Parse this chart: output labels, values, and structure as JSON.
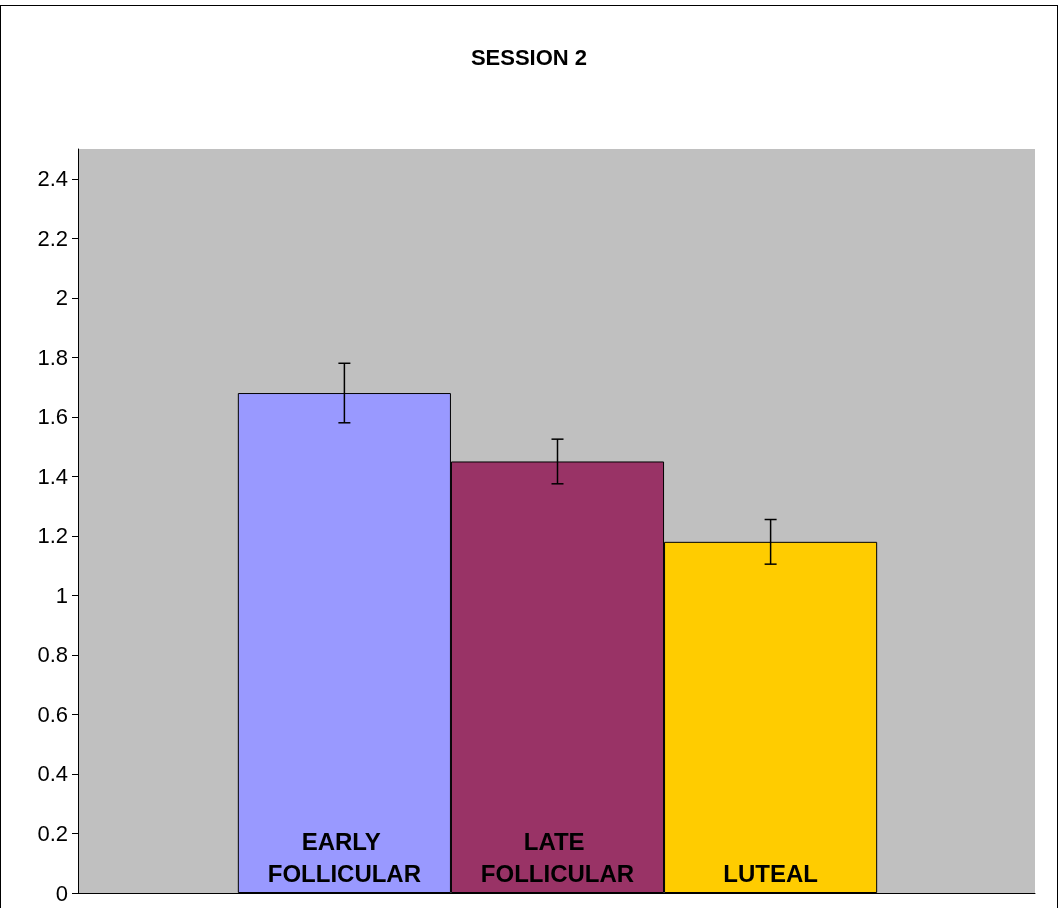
{
  "chart_data": {
    "type": "bar",
    "title": "SESSION 2",
    "categories": [
      "EARLY FOLLICULAR",
      "LATE FOLLICULAR",
      "LUTEAL"
    ],
    "values": [
      1.68,
      1.45,
      1.18
    ],
    "colors": [
      "#9999ff",
      "#993366",
      "#ffcc00"
    ],
    "errors": [
      0.1,
      0.075,
      0.075
    ],
    "ylim": [
      0,
      2.5
    ],
    "yticks": [
      0,
      0.2,
      0.4,
      0.6,
      0.8,
      1,
      1.2,
      1.4,
      1.6,
      1.8,
      2,
      2.2,
      2.4
    ],
    "grid": false
  }
}
